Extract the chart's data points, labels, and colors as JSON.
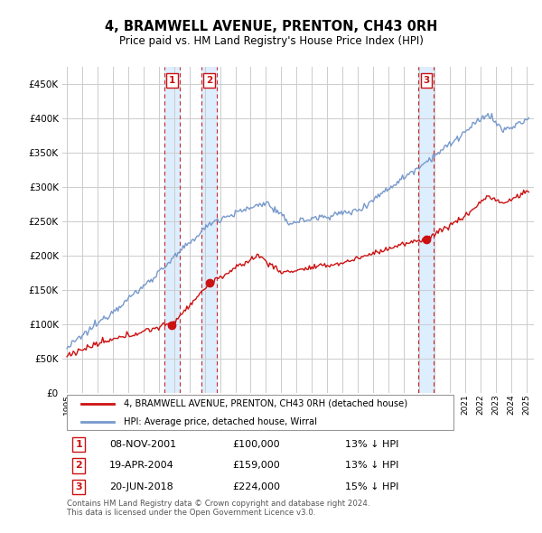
{
  "title": "4, BRAMWELL AVENUE, PRENTON, CH43 0RH",
  "subtitle": "Price paid vs. HM Land Registry's House Price Index (HPI)",
  "ytick_values": [
    0,
    50000,
    100000,
    150000,
    200000,
    250000,
    300000,
    350000,
    400000,
    450000
  ],
  "xlim_start": 1994.7,
  "xlim_end": 2025.5,
  "ylim": [
    0,
    475000
  ],
  "transactions": [
    {
      "label": "1",
      "date_num": 2001.86,
      "price": 100000
    },
    {
      "label": "2",
      "date_num": 2004.3,
      "price": 159000
    },
    {
      "label": "3",
      "date_num": 2018.47,
      "price": 224000
    }
  ],
  "transaction_table": [
    {
      "num": "1",
      "date": "08-NOV-2001",
      "price": "£100,000",
      "pct": "13% ↓ HPI"
    },
    {
      "num": "2",
      "date": "19-APR-2004",
      "price": "£159,000",
      "pct": "13% ↓ HPI"
    },
    {
      "num": "3",
      "date": "20-JUN-2018",
      "price": "£224,000",
      "pct": "15% ↓ HPI"
    }
  ],
  "legend_line1": "4, BRAMWELL AVENUE, PRENTON, CH43 0RH (detached house)",
  "legend_line2": "HPI: Average price, detached house, Wirral",
  "footnote": "Contains HM Land Registry data © Crown copyright and database right 2024.\nThis data is licensed under the Open Government Licence v3.0.",
  "hpi_color": "#7799cc",
  "property_color": "#cc1111",
  "transaction_box_color": "#cc1111",
  "transaction_region_color": "#ddeeff",
  "grid_color": "#cccccc",
  "background_color": "#ffffff"
}
